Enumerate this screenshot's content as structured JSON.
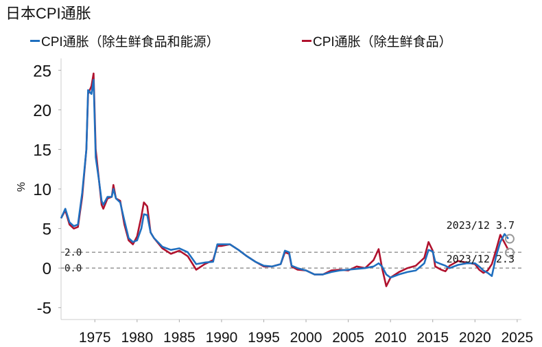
{
  "title": "日本CPI通胀",
  "colors": {
    "core": "#1f6fbf",
    "ex_fresh": "#b0122e",
    "ref_line": "#808080"
  },
  "chart_data": {
    "type": "line",
    "title": "日本CPI通胀",
    "ylabel": "%",
    "xlabel": "",
    "xlim": [
      1971,
      2025.5
    ],
    "ylim": [
      -6.5,
      26.5
    ],
    "xticks": [
      1975,
      1980,
      1985,
      1990,
      1995,
      2000,
      2005,
      2010,
      2015,
      2020,
      2025
    ],
    "yticks": [
      -5,
      0,
      5,
      10,
      15,
      20,
      25
    ],
    "grid": false,
    "legend": "top",
    "reference_lines": [
      {
        "y": 2.0,
        "label": "2.0"
      },
      {
        "y": 0.0,
        "label": "0.0"
      }
    ],
    "annotations": [
      {
        "text": "2023/12  3.7",
        "series": "core"
      },
      {
        "text": "2023/12  2.3",
        "series": "ex_fresh"
      }
    ],
    "series": [
      {
        "key": "ex_fresh",
        "name": "CPI通胀（除生鲜食品）",
        "x": [
          1971.0,
          1971.5,
          1972.0,
          1972.5,
          1973.0,
          1973.5,
          1974.0,
          1974.2,
          1974.6,
          1974.85,
          1975.1,
          1975.5,
          1975.8,
          1976.0,
          1976.5,
          1977.0,
          1977.2,
          1977.5,
          1978.0,
          1978.5,
          1979.0,
          1979.5,
          1980.0,
          1980.5,
          1980.8,
          1981.2,
          1981.6,
          1982,
          1983,
          1984,
          1985,
          1986,
          1987,
          1988,
          1989,
          1989.5,
          1990,
          1991,
          1992,
          1993,
          1994,
          1995,
          1996,
          1997,
          1997.5,
          1998,
          1998.3,
          1999,
          2000,
          2001,
          2002,
          2003,
          2004,
          2005,
          2006,
          2007,
          2008,
          2008.6,
          2009,
          2009.5,
          2010,
          2011,
          2012,
          2013,
          2014,
          2014.5,
          2015,
          2015.3,
          2016,
          2016.5,
          2017,
          2018,
          2019,
          2020,
          2020.5,
          2021,
          2021.5,
          2022,
          2022.5,
          2023,
          2023.5,
          2023.95
        ],
        "y": [
          6.3,
          7.3,
          5.5,
          5.0,
          5.2,
          9,
          15,
          22,
          23,
          24.6,
          15,
          11,
          8,
          7.5,
          8.8,
          9,
          10.5,
          8.8,
          8.5,
          5.5,
          3.5,
          3.0,
          4.0,
          6.5,
          8.3,
          7.8,
          4.5,
          3.8,
          2.5,
          1.8,
          2.2,
          1.5,
          -0.2,
          0.5,
          1.0,
          2.8,
          2.8,
          3.0,
          2.3,
          1.5,
          0.8,
          0.2,
          0.2,
          0.5,
          2.0,
          1.8,
          0.2,
          -0.2,
          -0.3,
          -0.8,
          -0.8,
          -0.3,
          -0.2,
          -0.3,
          0.2,
          0.0,
          1.0,
          2.4,
          0.0,
          -2.3,
          -1.2,
          -0.5,
          0.0,
          0.3,
          1.3,
          3.3,
          2.2,
          0.2,
          -0.2,
          -0.4,
          0.3,
          0.9,
          0.7,
          0.5,
          -0.2,
          -0.6,
          -0.3,
          0.5,
          2.3,
          4.2,
          3.2,
          2.3
        ]
      },
      {
        "key": "core",
        "name": "CPI通胀（除生鲜食品和能源）",
        "x": [
          1971.0,
          1971.5,
          1972.0,
          1972.5,
          1973.0,
          1973.5,
          1974.0,
          1974.2,
          1974.6,
          1974.85,
          1975.1,
          1975.5,
          1975.8,
          1976.0,
          1976.5,
          1977.0,
          1977.2,
          1977.5,
          1978.0,
          1978.5,
          1979.0,
          1979.5,
          1980.0,
          1980.5,
          1980.8,
          1981.2,
          1981.6,
          1982,
          1983,
          1984,
          1985,
          1986,
          1987,
          1988,
          1989,
          1989.5,
          1990,
          1991,
          1992,
          1993,
          1994,
          1995,
          1996,
          1997,
          1997.5,
          1998,
          1998.3,
          1999,
          2000,
          2001,
          2002,
          2003,
          2004,
          2005,
          2006,
          2007,
          2008,
          2008.6,
          2009,
          2009.5,
          2010,
          2011,
          2012,
          2013,
          2014,
          2014.5,
          2015,
          2015.3,
          2016,
          2016.5,
          2017,
          2018,
          2019,
          2020,
          2020.5,
          2021,
          2021.5,
          2022,
          2022.5,
          2023,
          2023.5,
          2023.95
        ],
        "y": [
          6.3,
          7.5,
          5.8,
          5.3,
          5.5,
          9.5,
          15,
          22.5,
          22,
          23.8,
          14,
          11,
          8.5,
          8.0,
          9.0,
          9.0,
          10.0,
          8.8,
          8.3,
          6.0,
          3.8,
          3.3,
          3.5,
          5.0,
          6.8,
          6.7,
          4.5,
          3.8,
          2.7,
          2.3,
          2.5,
          2.0,
          0.5,
          0.7,
          0.8,
          3.0,
          3.0,
          3.0,
          2.3,
          1.5,
          0.8,
          0.3,
          0.2,
          0.5,
          2.2,
          2.0,
          0.3,
          0.0,
          -0.3,
          -0.8,
          -0.8,
          -0.5,
          -0.3,
          -0.2,
          -0.1,
          0.0,
          0.2,
          0.6,
          0.2,
          -0.8,
          -1.2,
          -0.8,
          -0.5,
          -0.3,
          0.6,
          2.3,
          2.1,
          0.8,
          0.5,
          0.3,
          0.0,
          0.4,
          0.6,
          0.6,
          0.2,
          -0.3,
          -0.6,
          -1.0,
          1.5,
          3.3,
          4.3,
          3.7
        ]
      }
    ]
  }
}
